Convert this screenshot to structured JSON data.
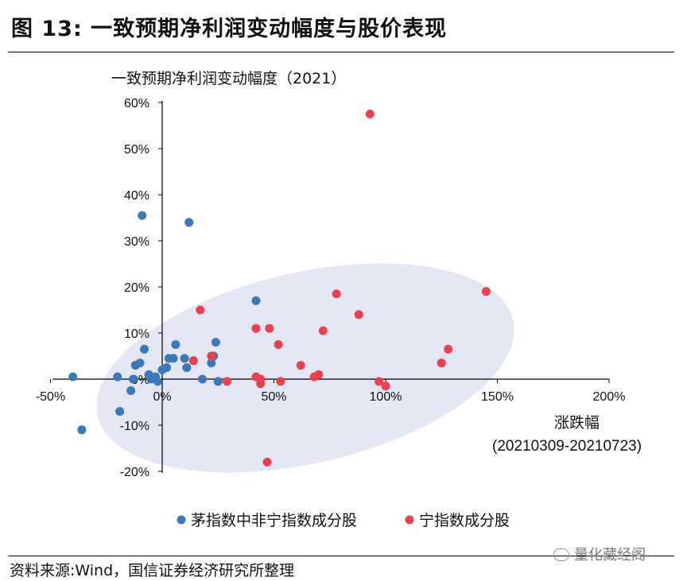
{
  "figure": {
    "title": "图 13:  一致预期净利润变动幅度与股价表现",
    "source": "资料来源:Wind，国信证券经济研究所整理",
    "watermark": "量化藏经阁",
    "watermark_icon": "wechat-icon"
  },
  "chart_data": {
    "type": "scatter",
    "ylabel": "一致预期净利润变动幅度（2021）",
    "xlabel": "涨跌幅",
    "xlabel_sub": "(20210309-20210723)",
    "xlim": [
      -0.5,
      2.0
    ],
    "ylim": [
      -0.2,
      0.6
    ],
    "x_ticks": [
      -0.5,
      0,
      0.5,
      1.0,
      1.5,
      2.0
    ],
    "x_tick_labels": [
      "-50%",
      "0%",
      "50%",
      "100%",
      "150%",
      "200%"
    ],
    "y_ticks": [
      -0.2,
      -0.1,
      0,
      0.1,
      0.2,
      0.3,
      0.4,
      0.5,
      0.6
    ],
    "y_tick_labels": [
      "-20%",
      "-10%",
      "0%",
      "10%",
      "20%",
      "30%",
      "40%",
      "50%",
      "60%"
    ],
    "grid": false,
    "legend_position": "bottom",
    "highlight_region": "ellipse",
    "highlight_color": "#dfe4f2",
    "series": [
      {
        "name": "茅指数中非宁指数成分股",
        "color": "#3a78b8",
        "x": [
          -0.4,
          -0.2,
          -0.1,
          -0.08,
          -0.12,
          -0.06,
          -0.14,
          -0.05,
          -0.03,
          -0.02,
          0.0,
          0.02,
          0.03,
          0.05,
          0.06,
          0.1,
          0.11,
          0.18,
          0.22,
          0.23,
          0.24,
          0.25,
          0.42,
          -0.13,
          -0.19,
          -0.36,
          0.12,
          -0.09
        ],
        "y": [
          0.005,
          0.005,
          0.035,
          0.065,
          0.03,
          0.01,
          -0.025,
          0.0,
          0.005,
          -0.005,
          0.02,
          0.025,
          0.045,
          0.045,
          0.075,
          0.045,
          0.025,
          0.0,
          0.035,
          0.05,
          0.08,
          -0.005,
          0.17,
          0.0,
          -0.07,
          -0.11,
          0.34,
          0.355
        ]
      },
      {
        "name": "宁指数成分股",
        "color": "#e8414f",
        "x": [
          0.14,
          0.17,
          0.22,
          0.29,
          0.42,
          0.42,
          0.44,
          0.44,
          0.48,
          0.52,
          0.53,
          0.62,
          0.68,
          0.7,
          0.72,
          0.78,
          0.88,
          0.93,
          0.97,
          1.0,
          1.25,
          1.28,
          1.45,
          0.47
        ],
        "y": [
          0.04,
          0.15,
          0.05,
          -0.005,
          0.11,
          0.005,
          0.0,
          -0.01,
          0.11,
          0.075,
          -0.005,
          0.03,
          0.005,
          0.01,
          0.105,
          0.185,
          0.14,
          0.575,
          -0.005,
          -0.015,
          0.035,
          0.065,
          0.19,
          -0.18
        ]
      }
    ]
  }
}
